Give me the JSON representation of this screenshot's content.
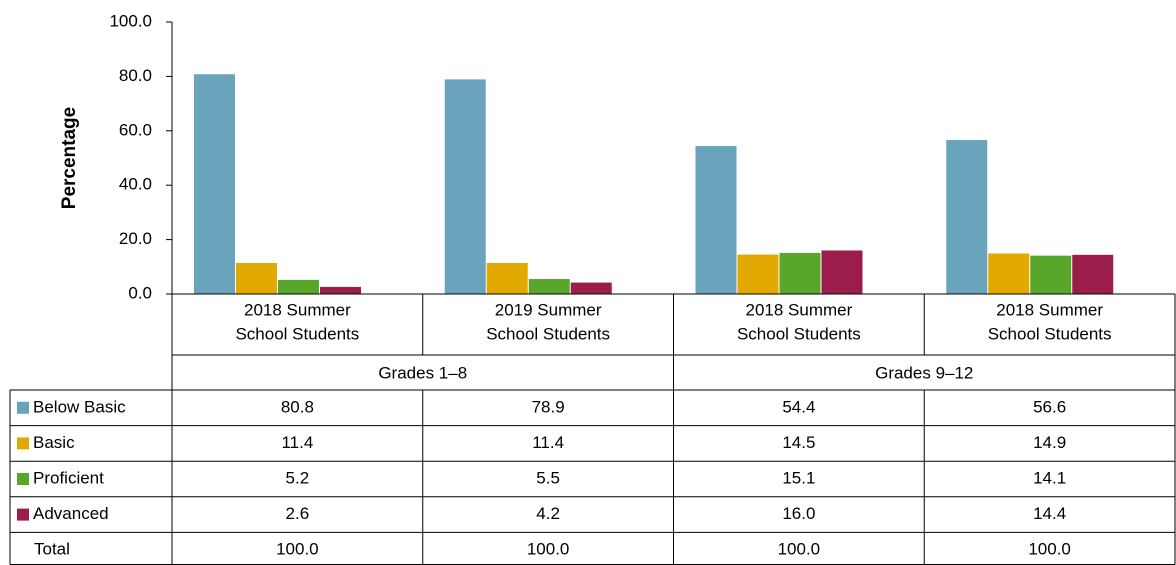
{
  "chart_data": {
    "type": "bar",
    "y_label": "Percentage",
    "categories": [
      [
        "2018 Summer",
        "School Students"
      ],
      [
        "2019 Summer",
        "School Students"
      ],
      [
        "2018 Summer",
        "School Students"
      ],
      [
        "2018 Summer",
        "School Students"
      ]
    ],
    "groups": [
      "Grades 1–8",
      "Grades 9–12"
    ],
    "ylim": [
      0,
      100
    ],
    "yticks": [
      {
        "value": 0,
        "label": "0.0"
      },
      {
        "value": 20,
        "label": "20.0"
      },
      {
        "value": 40,
        "label": "40.0"
      },
      {
        "value": 60,
        "label": "60.0"
      },
      {
        "value": 80,
        "label": "80.0"
      },
      {
        "value": 100,
        "label": "100.0"
      }
    ],
    "series": [
      {
        "name": "Below Basic",
        "color": "#6aa4bc",
        "values": [
          80.8,
          78.9,
          54.4,
          56.6
        ],
        "value_labels": [
          "80.8",
          "78.9",
          "54.4",
          "56.6"
        ]
      },
      {
        "name": "Basic",
        "color": "#e2a900",
        "values": [
          11.4,
          11.4,
          14.5,
          14.9
        ],
        "value_labels": [
          "11.4",
          "11.4",
          "14.5",
          "14.9"
        ]
      },
      {
        "name": "Proficient",
        "color": "#58a72a",
        "values": [
          5.2,
          5.5,
          15.1,
          14.1
        ],
        "value_labels": [
          "5.2",
          "5.5",
          "15.1",
          "14.1"
        ]
      },
      {
        "name": "Advanced",
        "color": "#9a1d4b",
        "values": [
          2.6,
          4.2,
          16.0,
          14.4
        ],
        "value_labels": [
          "2.6",
          "4.2",
          "16.0",
          "14.4"
        ]
      }
    ],
    "total": {
      "name": "Total",
      "values": [
        100,
        100,
        100,
        100
      ],
      "value_labels": [
        "100.0",
        "100.0",
        "100.0",
        "100.0"
      ]
    }
  }
}
